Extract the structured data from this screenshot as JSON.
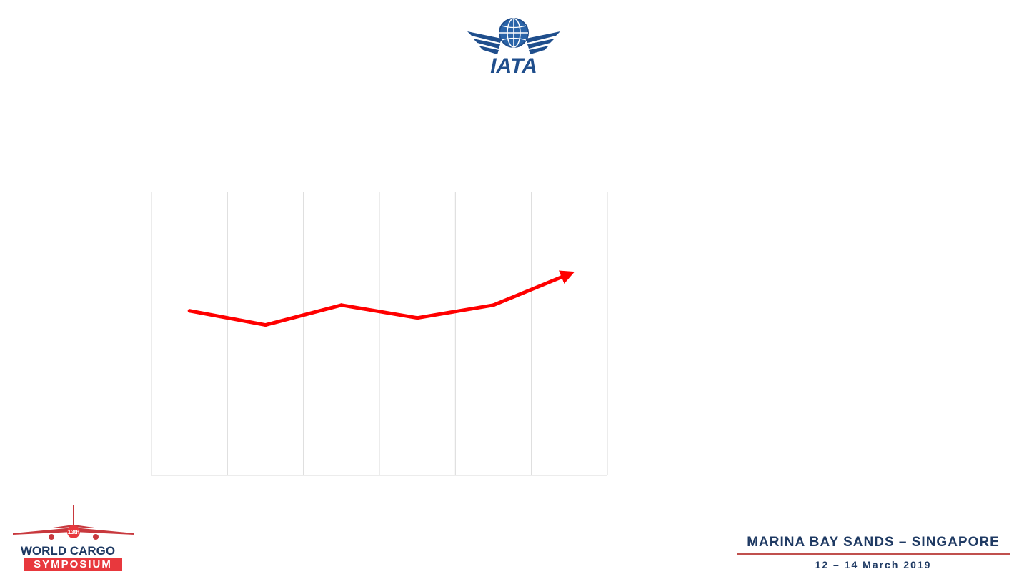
{
  "logo": {
    "text": "IATA",
    "colors": {
      "primary": "#1f4e8c",
      "globe": "#2a64a8"
    }
  },
  "chart_data": {
    "type": "line",
    "x": [
      1,
      2,
      3,
      4,
      5,
      6
    ],
    "values": [
      58,
      53,
      60,
      55.5,
      60,
      71
    ],
    "ylim": [
      0,
      100
    ],
    "xlim": [
      0.5,
      6.5
    ],
    "grid": {
      "vertical": true,
      "horizontal": false
    },
    "line_color": "#ff0000",
    "end_marker": "arrow",
    "title": "",
    "xlabel": "",
    "ylabel": ""
  },
  "footer": {
    "event_line1": "WORLD CARGO",
    "event_line2": "SYMPOSIUM",
    "edition_badge": "13th",
    "venue": "MARINA BAY SANDS – SINGAPORE",
    "dates": "12 – 14 March 2019",
    "colors": {
      "navy": "#1f3a63",
      "red": "#e8383d"
    }
  }
}
